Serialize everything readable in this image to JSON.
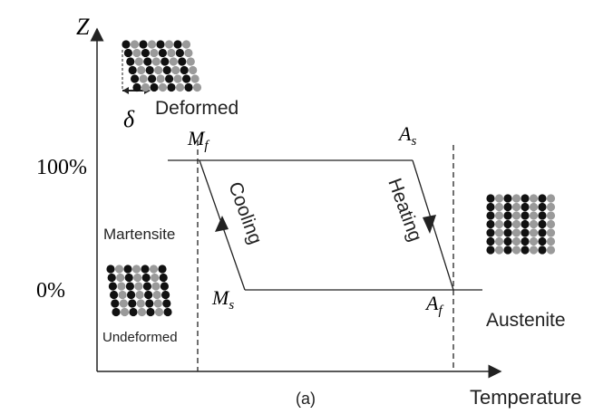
{
  "axes": {
    "y_label": "Z",
    "x_label": "Temperature",
    "y_top": "100%",
    "y_bottom": "0%"
  },
  "points": {
    "mf": {
      "main": "M",
      "sub": "f"
    },
    "as": {
      "main": "A",
      "sub": "s"
    },
    "ms": {
      "main": "M",
      "sub": "s"
    },
    "af": {
      "main": "A",
      "sub": "f"
    }
  },
  "paths": {
    "cooling": "Cooling",
    "heating": "Heating"
  },
  "phases": {
    "martensite": "Martensite",
    "undeformed": "Undeformed",
    "deformed": "Deformed",
    "delta": "δ",
    "austenite": "Austenite"
  },
  "caption": "(a)"
}
